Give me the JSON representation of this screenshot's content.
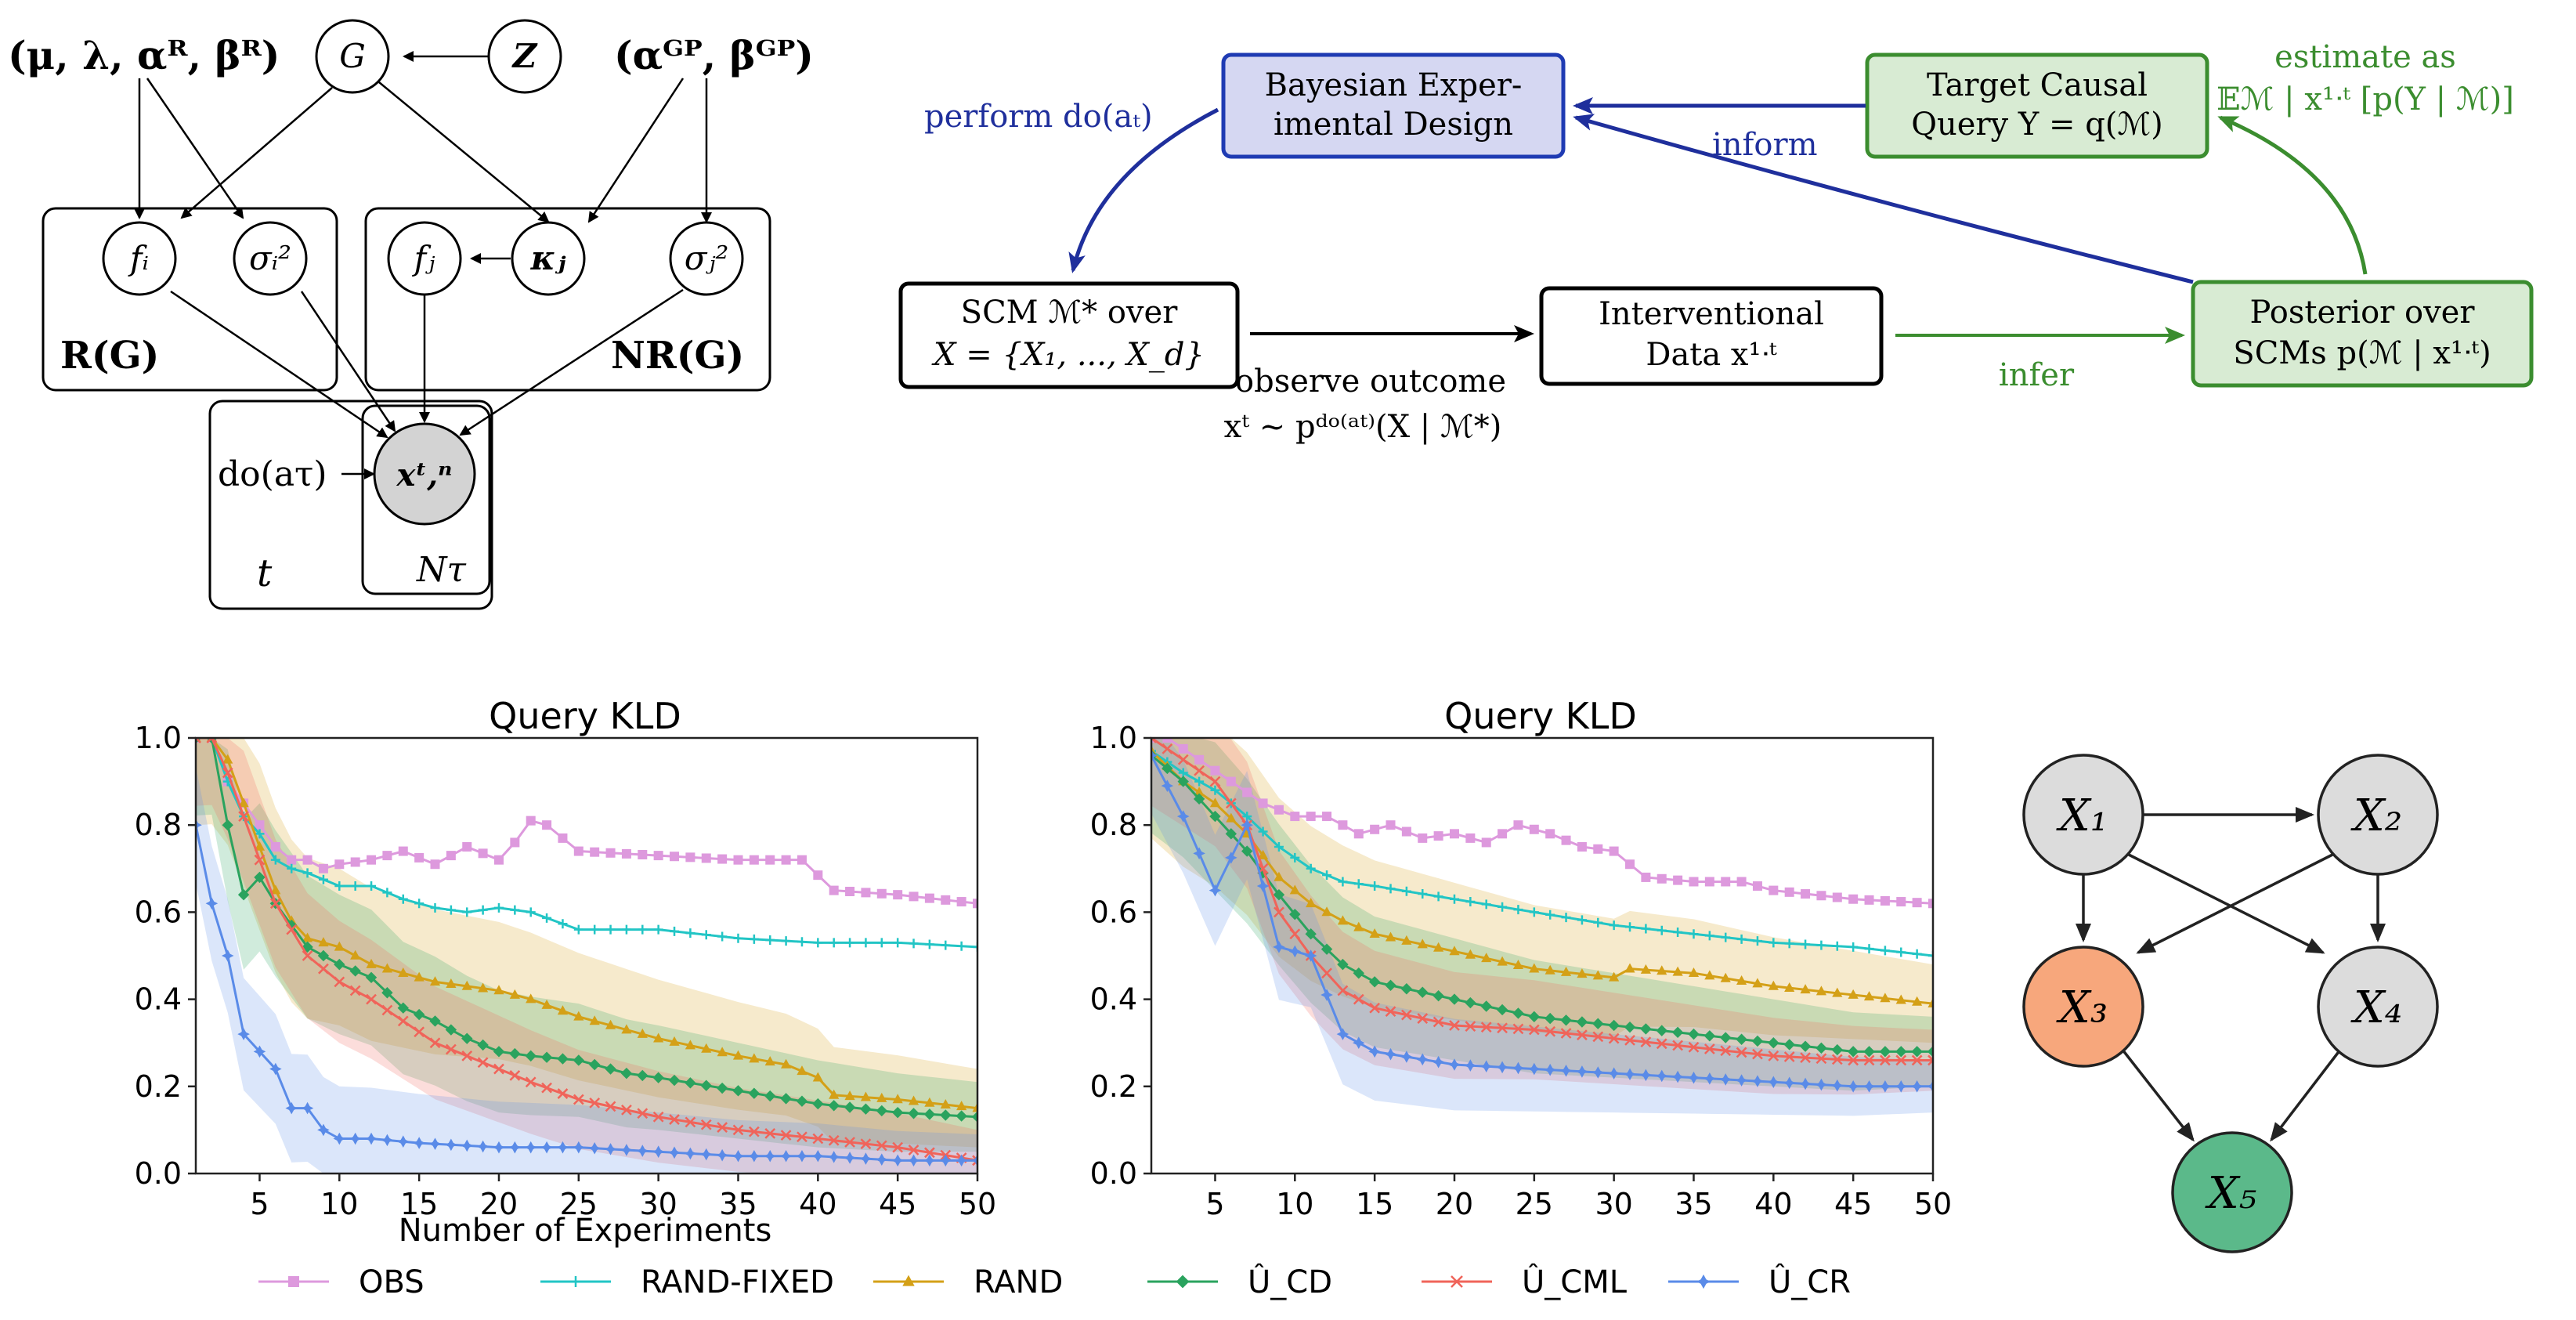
{
  "plate": {
    "hyper_left": "(μ, λ, αᴿ, βᴿ)",
    "hyper_right": "(αᴳᴾ, βᴳᴾ)",
    "node_G": "G",
    "node_Z": "Z",
    "node_fi": "fᵢ",
    "node_sigma_i": "σᵢ²",
    "node_fj": "fⱼ",
    "node_kappa_j": "κⱼ",
    "node_sigma_j": "σⱼ²",
    "node_x": "xᵗ,ⁿ",
    "do_label": "do(aτ)",
    "plate_R": "R(G)",
    "plate_NR": "NR(G)",
    "plate_t": "t",
    "plate_N": "Nτ"
  },
  "loop": {
    "bed_line1": "Bayesian Exper-",
    "bed_line2": "imental Design",
    "target_line1": "Target Causal",
    "target_line2": "Query Y = q(ℳ)",
    "scm_line1": "SCM ℳ* over",
    "scm_line2": "X = {X₁, ..., X_d}",
    "data_line1": "Interventional",
    "data_line2": "Data x¹ᐧᵗ",
    "post_line1": "Posterior over",
    "post_line2": "SCMs p(ℳ | x¹ᐧᵗ)",
    "perform": "perform do(aₜ)",
    "inform": "inform",
    "estimate_line1": "estimate as",
    "estimate_line2": "𝔼ℳ | x¹ᐧᵗ [p(Y | ℳ)]",
    "observe_line1": "observe outcome",
    "observe_line2": "xᵗ  ~  pᵈᵒ⁽ᵃᵗ⁾(X | ℳ*)",
    "infer": "infer"
  },
  "chart_data": [
    {
      "type": "line",
      "title": "Query KLD",
      "xlabel": "Number of Experiments",
      "ylabel": "",
      "xlim": [
        1,
        50
      ],
      "ylim": [
        0,
        1
      ],
      "xticks": [
        5,
        10,
        15,
        20,
        25,
        30,
        35,
        40,
        45,
        50
      ],
      "yticks": [
        0.0,
        0.2,
        0.4,
        0.6,
        0.8,
        1.0
      ],
      "series": [
        {
          "name": "OBS",
          "points": [
            [
              2,
              1.0
            ],
            [
              3,
              0.9
            ],
            [
              4,
              0.85
            ],
            [
              5,
              0.8
            ],
            [
              6,
              0.75
            ],
            [
              7,
              0.72
            ],
            [
              8,
              0.72
            ],
            [
              9,
              0.7
            ],
            [
              10,
              0.71
            ],
            [
              12,
              0.72
            ],
            [
              14,
              0.74
            ],
            [
              16,
              0.71
            ],
            [
              18,
              0.75
            ],
            [
              20,
              0.72
            ],
            [
              21,
              0.76
            ],
            [
              22,
              0.81
            ],
            [
              23,
              0.8
            ],
            [
              25,
              0.74
            ],
            [
              30,
              0.73
            ],
            [
              35,
              0.72
            ],
            [
              39,
              0.72
            ],
            [
              41,
              0.65
            ],
            [
              45,
              0.64
            ],
            [
              50,
              0.62
            ]
          ]
        },
        {
          "name": "RAND-FIXED",
          "points": [
            [
              2,
              1.0
            ],
            [
              3,
              0.9
            ],
            [
              4,
              0.82
            ],
            [
              5,
              0.78
            ],
            [
              6,
              0.72
            ],
            [
              7,
              0.7
            ],
            [
              8,
              0.69
            ],
            [
              10,
              0.66
            ],
            [
              12,
              0.66
            ],
            [
              14,
              0.63
            ],
            [
              16,
              0.61
            ],
            [
              18,
              0.6
            ],
            [
              20,
              0.61
            ],
            [
              22,
              0.6
            ],
            [
              25,
              0.56
            ],
            [
              30,
              0.56
            ],
            [
              35,
              0.54
            ],
            [
              40,
              0.53
            ],
            [
              45,
              0.53
            ],
            [
              50,
              0.52
            ]
          ]
        },
        {
          "name": "RAND",
          "points": [
            [
              2,
              1.0
            ],
            [
              3,
              0.95
            ],
            [
              4,
              0.85
            ],
            [
              5,
              0.75
            ],
            [
              6,
              0.65
            ],
            [
              7,
              0.58
            ],
            [
              8,
              0.54
            ],
            [
              10,
              0.52
            ],
            [
              12,
              0.48
            ],
            [
              14,
              0.46
            ],
            [
              16,
              0.44
            ],
            [
              18,
              0.43
            ],
            [
              20,
              0.42
            ],
            [
              22,
              0.4
            ],
            [
              25,
              0.36
            ],
            [
              28,
              0.33
            ],
            [
              30,
              0.31
            ],
            [
              35,
              0.27
            ],
            [
              38,
              0.25
            ],
            [
              40,
              0.22
            ],
            [
              41,
              0.18
            ],
            [
              45,
              0.17
            ],
            [
              50,
              0.15
            ]
          ]
        },
        {
          "name": "Û_CD",
          "points": [
            [
              2,
              1.0
            ],
            [
              3,
              0.8
            ],
            [
              4,
              0.64
            ],
            [
              5,
              0.68
            ],
            [
              6,
              0.62
            ],
            [
              7,
              0.57
            ],
            [
              8,
              0.52
            ],
            [
              10,
              0.48
            ],
            [
              12,
              0.45
            ],
            [
              14,
              0.38
            ],
            [
              16,
              0.35
            ],
            [
              18,
              0.31
            ],
            [
              20,
              0.28
            ],
            [
              22,
              0.27
            ],
            [
              25,
              0.26
            ],
            [
              28,
              0.23
            ],
            [
              30,
              0.22
            ],
            [
              35,
              0.19
            ],
            [
              40,
              0.16
            ],
            [
              45,
              0.14
            ],
            [
              50,
              0.13
            ]
          ]
        },
        {
          "name": "Û_CML",
          "points": [
            [
              2,
              1.0
            ],
            [
              3,
              0.92
            ],
            [
              4,
              0.82
            ],
            [
              5,
              0.72
            ],
            [
              6,
              0.62
            ],
            [
              7,
              0.56
            ],
            [
              8,
              0.5
            ],
            [
              10,
              0.44
            ],
            [
              12,
              0.4
            ],
            [
              14,
              0.35
            ],
            [
              16,
              0.3
            ],
            [
              18,
              0.27
            ],
            [
              20,
              0.24
            ],
            [
              22,
              0.21
            ],
            [
              25,
              0.17
            ],
            [
              30,
              0.13
            ],
            [
              35,
              0.1
            ],
            [
              40,
              0.08
            ],
            [
              45,
              0.06
            ],
            [
              50,
              0.03
            ]
          ]
        },
        {
          "name": "Û_CR",
          "points": [
            [
              1,
              0.8
            ],
            [
              2,
              0.62
            ],
            [
              3,
              0.5
            ],
            [
              4,
              0.32
            ],
            [
              5,
              0.28
            ],
            [
              6,
              0.24
            ],
            [
              7,
              0.15
            ],
            [
              8,
              0.15
            ],
            [
              9,
              0.1
            ],
            [
              10,
              0.08
            ],
            [
              12,
              0.08
            ],
            [
              15,
              0.07
            ],
            [
              20,
              0.06
            ],
            [
              25,
              0.06
            ],
            [
              30,
              0.05
            ],
            [
              35,
              0.04
            ],
            [
              40,
              0.04
            ],
            [
              45,
              0.03
            ],
            [
              50,
              0.03
            ]
          ]
        }
      ]
    },
    {
      "type": "line",
      "title": "Query KLD",
      "xlabel": "",
      "ylabel": "",
      "xlim": [
        1,
        50
      ],
      "ylim": [
        0,
        1
      ],
      "xticks": [
        5,
        10,
        15,
        20,
        25,
        30,
        35,
        40,
        45,
        50
      ],
      "yticks": [
        0.0,
        0.2,
        0.4,
        0.6,
        0.8,
        1.0
      ],
      "series": [
        {
          "name": "OBS",
          "points": [
            [
              2,
              1.0
            ],
            [
              4,
              0.95
            ],
            [
              6,
              0.9
            ],
            [
              8,
              0.85
            ],
            [
              10,
              0.82
            ],
            [
              12,
              0.82
            ],
            [
              14,
              0.78
            ],
            [
              16,
              0.8
            ],
            [
              18,
              0.77
            ],
            [
              20,
              0.78
            ],
            [
              22,
              0.76
            ],
            [
              24,
              0.8
            ],
            [
              26,
              0.78
            ],
            [
              28,
              0.75
            ],
            [
              30,
              0.74
            ],
            [
              32,
              0.68
            ],
            [
              35,
              0.67
            ],
            [
              38,
              0.67
            ],
            [
              40,
              0.65
            ],
            [
              45,
              0.63
            ],
            [
              50,
              0.62
            ]
          ]
        },
        {
          "name": "RAND-FIXED",
          "points": [
            [
              1,
              0.97
            ],
            [
              3,
              0.92
            ],
            [
              5,
              0.88
            ],
            [
              7,
              0.82
            ],
            [
              9,
              0.75
            ],
            [
              11,
              0.7
            ],
            [
              13,
              0.67
            ],
            [
              15,
              0.66
            ],
            [
              20,
              0.63
            ],
            [
              25,
              0.6
            ],
            [
              30,
              0.57
            ],
            [
              35,
              0.55
            ],
            [
              40,
              0.53
            ],
            [
              45,
              0.52
            ],
            [
              50,
              0.5
            ]
          ]
        },
        {
          "name": "RAND",
          "points": [
            [
              1,
              0.97
            ],
            [
              3,
              0.9
            ],
            [
              5,
              0.85
            ],
            [
              7,
              0.78
            ],
            [
              9,
              0.68
            ],
            [
              11,
              0.62
            ],
            [
              13,
              0.58
            ],
            [
              15,
              0.55
            ],
            [
              20,
              0.51
            ],
            [
              25,
              0.47
            ],
            [
              30,
              0.45
            ],
            [
              31,
              0.47
            ],
            [
              35,
              0.46
            ],
            [
              40,
              0.43
            ],
            [
              45,
              0.41
            ],
            [
              50,
              0.39
            ]
          ]
        },
        {
          "name": "Û_CD",
          "points": [
            [
              1,
              0.96
            ],
            [
              3,
              0.9
            ],
            [
              5,
              0.82
            ],
            [
              7,
              0.74
            ],
            [
              9,
              0.64
            ],
            [
              11,
              0.55
            ],
            [
              13,
              0.48
            ],
            [
              15,
              0.44
            ],
            [
              20,
              0.4
            ],
            [
              25,
              0.36
            ],
            [
              30,
              0.34
            ],
            [
              35,
              0.32
            ],
            [
              40,
              0.3
            ],
            [
              45,
              0.28
            ],
            [
              50,
              0.28
            ]
          ]
        },
        {
          "name": "Û_CML",
          "points": [
            [
              1,
              1.0
            ],
            [
              3,
              0.95
            ],
            [
              5,
              0.9
            ],
            [
              7,
              0.8
            ],
            [
              9,
              0.6
            ],
            [
              11,
              0.5
            ],
            [
              13,
              0.42
            ],
            [
              15,
              0.38
            ],
            [
              20,
              0.34
            ],
            [
              25,
              0.33
            ],
            [
              30,
              0.31
            ],
            [
              35,
              0.29
            ],
            [
              40,
              0.27
            ],
            [
              45,
              0.26
            ],
            [
              50,
              0.26
            ]
          ]
        },
        {
          "name": "Û_CR",
          "points": [
            [
              1,
              0.96
            ],
            [
              3,
              0.82
            ],
            [
              5,
              0.65
            ],
            [
              7,
              0.8
            ],
            [
              9,
              0.52
            ],
            [
              11,
              0.5
            ],
            [
              13,
              0.32
            ],
            [
              15,
              0.28
            ],
            [
              20,
              0.25
            ],
            [
              25,
              0.24
            ],
            [
              30,
              0.23
            ],
            [
              35,
              0.22
            ],
            [
              40,
              0.21
            ],
            [
              45,
              0.2
            ],
            [
              50,
              0.2
            ]
          ]
        }
      ]
    }
  ],
  "legend": [
    "OBS",
    "RAND-FIXED",
    "RAND",
    "Û_CD",
    "Û_CML",
    "Û_CR"
  ],
  "colors": {
    "OBS": "#dd99dd",
    "RAND-FIXED": "#22c5c5",
    "RAND": "#d4a017",
    "Û_CD": "#2aa35e",
    "Û_CML": "#f0645a",
    "Û_CR": "#5a8be8",
    "blue_box_fill": "#d5d7f2",
    "blue_box_stroke": "#1f3bb3",
    "green_box_fill": "#d8ebd3",
    "green_box_stroke": "#3b8d2f",
    "node_x3": "#f7a77c",
    "node_x5": "#5bb98a",
    "node_gray": "#dcdcdc"
  },
  "dag": {
    "x1": "X₁",
    "x2": "X₂",
    "x3": "X₃",
    "x4": "X₄",
    "x5": "X₅"
  }
}
